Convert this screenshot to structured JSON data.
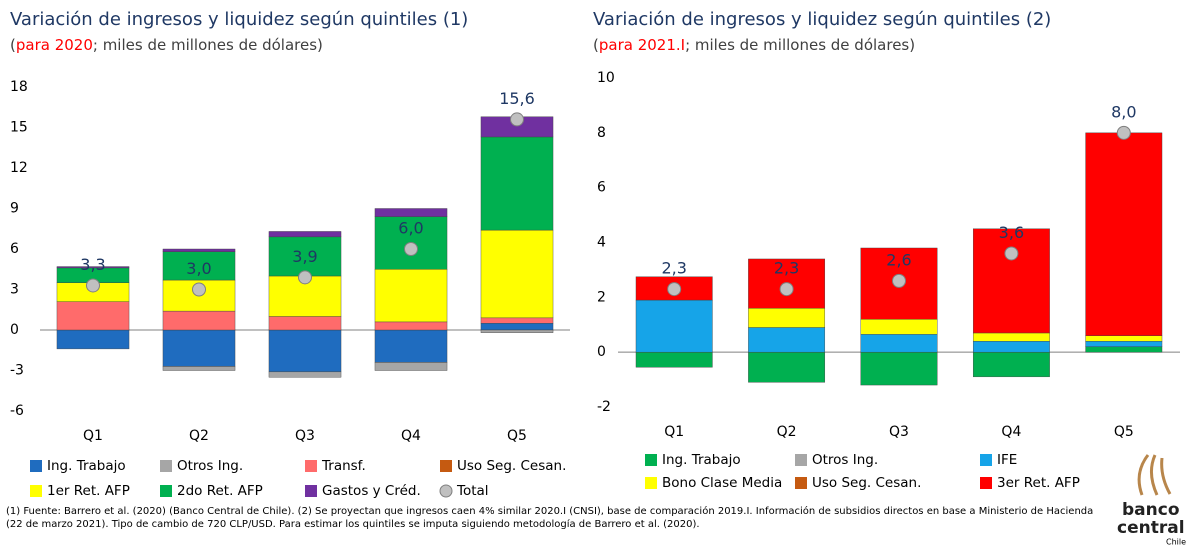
{
  "chart_data": [
    {
      "type": "bar",
      "stacked": true,
      "title": "Variación de ingresos y liquidez según quintiles (1)",
      "subtitle_parts": [
        "para 2020",
        "; miles de millones de dólares"
      ],
      "categories": [
        "Q1",
        "Q2",
        "Q3",
        "Q4",
        "Q5"
      ],
      "ylim": [
        -6,
        18
      ],
      "yticks": [
        -6,
        -3,
        0,
        3,
        6,
        9,
        12,
        15,
        18
      ],
      "series": [
        {
          "name": "Ing. Trabajo",
          "color": "#1f6cbf",
          "values": [
            -1.4,
            -2.7,
            -3.1,
            -2.4,
            0.5
          ]
        },
        {
          "name": "Otros Ing.",
          "color": "#a6a6a6",
          "values": [
            0,
            -0.3,
            -0.4,
            -0.6,
            -0.2
          ]
        },
        {
          "name": "Transf.",
          "color": "#ff6b6b",
          "values": [
            2.1,
            1.4,
            1.0,
            0.6,
            0.4
          ]
        },
        {
          "name": "Uso Seg. Cesan.",
          "color": "#c55a11",
          "values": [
            0,
            0,
            0,
            0,
            0
          ]
        },
        {
          "name": "1er Ret. AFP",
          "color": "#ffff00",
          "values": [
            1.4,
            2.3,
            3.0,
            3.9,
            6.5
          ]
        },
        {
          "name": "2do Ret. AFP",
          "color": "#00b050",
          "values": [
            1.1,
            2.1,
            2.9,
            3.9,
            6.9
          ]
        },
        {
          "name": "Gastos y Créd.",
          "color": "#7030a0",
          "values": [
            0.1,
            0.2,
            0.4,
            0.6,
            1.5
          ]
        }
      ],
      "total": {
        "name": "Total",
        "color": "#c0c0c0",
        "values": [
          3.3,
          3.0,
          3.9,
          6.0,
          15.6
        ],
        "value_labels": [
          "3,3",
          "3,0",
          "3,9",
          "6,0",
          "15,6"
        ]
      }
    },
    {
      "type": "bar",
      "stacked": true,
      "title": "Variación de ingresos y liquidez según quintiles (2)",
      "subtitle_parts": [
        "para 2021.I",
        "; miles de millones de dólares"
      ],
      "categories": [
        "Q1",
        "Q2",
        "Q3",
        "Q4",
        "Q5"
      ],
      "ylim": [
        -2,
        10
      ],
      "yticks": [
        -2,
        0,
        2,
        4,
        6,
        8,
        10
      ],
      "series": [
        {
          "name": "Ing. Trabajo",
          "color": "#00b050",
          "values": [
            -0.55,
            -1.1,
            -1.2,
            -0.9,
            0.2
          ]
        },
        {
          "name": "Otros Ing.",
          "color": "#a6a6a6",
          "values": [
            0,
            0,
            0,
            0,
            0
          ]
        },
        {
          "name": "IFE",
          "color": "#16a4e8",
          "values": [
            1.9,
            0.9,
            0.65,
            0.4,
            0.2
          ]
        },
        {
          "name": "Bono Clase Media",
          "color": "#ffff00",
          "values": [
            0,
            0.7,
            0.55,
            0.3,
            0.2
          ]
        },
        {
          "name": "Uso Seg. Cesan.",
          "color": "#c55a11",
          "values": [
            0,
            0,
            0,
            0,
            0
          ]
        },
        {
          "name": "3er Ret. AFP",
          "color": "#ff0000",
          "values": [
            0.85,
            1.8,
            2.6,
            3.8,
            7.4
          ]
        }
      ],
      "total": {
        "name": "Total",
        "color": "#c0c0c0",
        "values": [
          2.3,
          2.3,
          2.6,
          3.6,
          8.0
        ],
        "value_labels": [
          "2,3",
          "2,3",
          "2,6",
          "3,6",
          "8,0"
        ]
      }
    }
  ],
  "footnote": "(1) Fuente: Barrero et al. (2020) (Banco Central de Chile). (2) Se proyectan que ingresos caen 4% similar 2020.I (CNSI), base de comparación 2019.I. Información de subsidios directos en base a Ministerio de Hacienda (22 de marzo 2021). Tipo de cambio de 720 CLP/USD. Para estimar los quintiles se imputa siguiendo metodología de Barrero et al. (2020).",
  "logo": [
    "banco",
    "central",
    "Chile"
  ]
}
